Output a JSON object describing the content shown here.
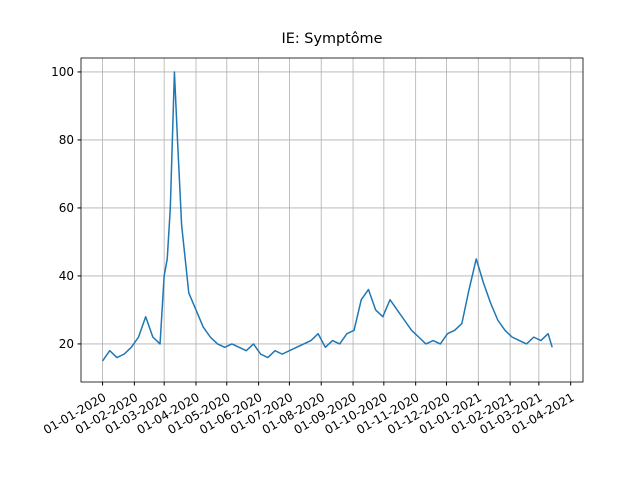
{
  "chart_data": {
    "type": "line",
    "title": "IE: Symptôme",
    "x": [
      "2020-01-01",
      "2020-01-08",
      "2020-01-15",
      "2020-01-22",
      "2020-01-29",
      "2020-02-05",
      "2020-02-12",
      "2020-02-19",
      "2020-02-26",
      "2020-03-01",
      "2020-03-04",
      "2020-03-07",
      "2020-03-11",
      "2020-03-14",
      "2020-03-18",
      "2020-03-25",
      "2020-04-01",
      "2020-04-08",
      "2020-04-15",
      "2020-04-22",
      "2020-04-29",
      "2020-05-06",
      "2020-05-13",
      "2020-05-20",
      "2020-05-27",
      "2020-06-03",
      "2020-06-10",
      "2020-06-17",
      "2020-06-24",
      "2020-07-01",
      "2020-07-08",
      "2020-07-15",
      "2020-07-22",
      "2020-07-29",
      "2020-08-05",
      "2020-08-12",
      "2020-08-19",
      "2020-08-26",
      "2020-09-02",
      "2020-09-09",
      "2020-09-16",
      "2020-09-23",
      "2020-09-30",
      "2020-10-07",
      "2020-10-14",
      "2020-10-21",
      "2020-10-28",
      "2020-11-04",
      "2020-11-11",
      "2020-11-18",
      "2020-11-25",
      "2020-12-02",
      "2020-12-09",
      "2020-12-16",
      "2020-12-23",
      "2020-12-30",
      "2021-01-06",
      "2021-01-13",
      "2021-01-20",
      "2021-01-27",
      "2021-02-03",
      "2021-02-10",
      "2021-02-17",
      "2021-02-24",
      "2021-03-03",
      "2021-03-10",
      "2021-03-14"
    ],
    "series": [
      {
        "color": "#1f77b4",
        "values": [
          15,
          18,
          16,
          17,
          19,
          22,
          28,
          22,
          20,
          40,
          45,
          60,
          100,
          80,
          55,
          35,
          30,
          25,
          22,
          20,
          19,
          20,
          19,
          18,
          20,
          17,
          16,
          18,
          17,
          18,
          19,
          20,
          21,
          23,
          19,
          21,
          20,
          23,
          24,
          33,
          36,
          30,
          28,
          33,
          30,
          27,
          24,
          22,
          20,
          21,
          20,
          23,
          24,
          26,
          36,
          45,
          38,
          32,
          27,
          24,
          22,
          21,
          20,
          22,
          21,
          23,
          19
        ]
      }
    ],
    "xlim": [
      "2019-12-11",
      "2021-04-13"
    ],
    "xticks": [
      {
        "value": "2020-01-01",
        "label": "01-01-2020"
      },
      {
        "value": "2020-02-01",
        "label": "01-02-2020"
      },
      {
        "value": "2020-03-01",
        "label": "01-03-2020"
      },
      {
        "value": "2020-04-01",
        "label": "01-04-2020"
      },
      {
        "value": "2020-05-01",
        "label": "01-05-2020"
      },
      {
        "value": "2020-06-01",
        "label": "01-06-2020"
      },
      {
        "value": "2020-07-01",
        "label": "01-07-2020"
      },
      {
        "value": "2020-08-01",
        "label": "01-08-2020"
      },
      {
        "value": "2020-09-01",
        "label": "01-09-2020"
      },
      {
        "value": "2020-10-01",
        "label": "01-10-2020"
      },
      {
        "value": "2020-11-01",
        "label": "01-11-2020"
      },
      {
        "value": "2020-12-01",
        "label": "01-12-2020"
      },
      {
        "value": "2021-01-01",
        "label": "01-01-2021"
      },
      {
        "value": "2021-02-01",
        "label": "01-02-2021"
      },
      {
        "value": "2021-03-01",
        "label": "01-03-2021"
      },
      {
        "value": "2021-04-01",
        "label": "01-04-2021"
      }
    ],
    "ylim": [
      8.8,
      104.1
    ],
    "yticks": [
      20,
      40,
      60,
      80,
      100
    ],
    "grid": true
  }
}
